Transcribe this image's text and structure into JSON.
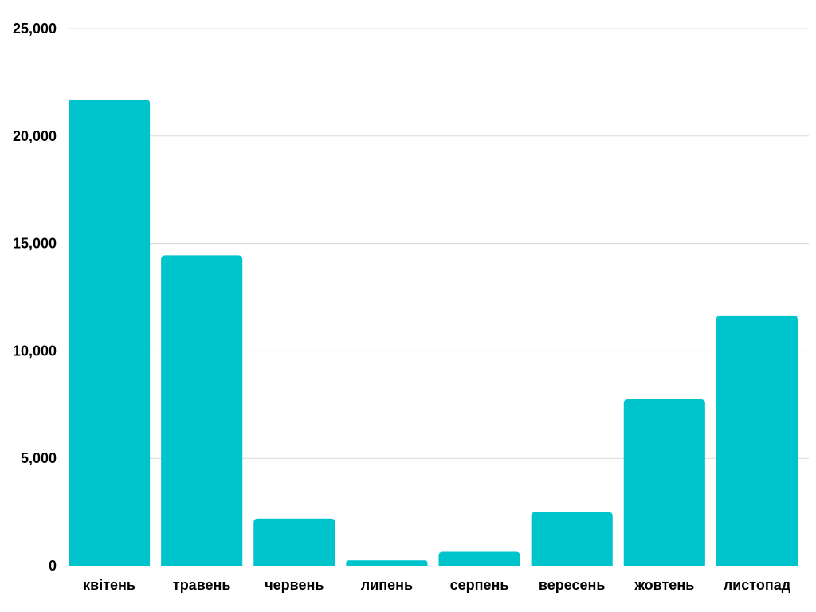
{
  "chart_data": {
    "type": "bar",
    "categories": [
      "квітень",
      "травень",
      "червень",
      "липень",
      "серпень",
      "вересень",
      "жовтень",
      "листопад"
    ],
    "values": [
      21700,
      14450,
      2200,
      250,
      650,
      2500,
      7750,
      11650
    ],
    "y_ticks": [
      "0",
      "5,000",
      "10,000",
      "15,000",
      "20,000",
      "25,000"
    ],
    "ylim": [
      0,
      25000
    ],
    "grid": true,
    "colors": {
      "bar": "#00c4cb",
      "grid": "#d9d9d9"
    }
  }
}
